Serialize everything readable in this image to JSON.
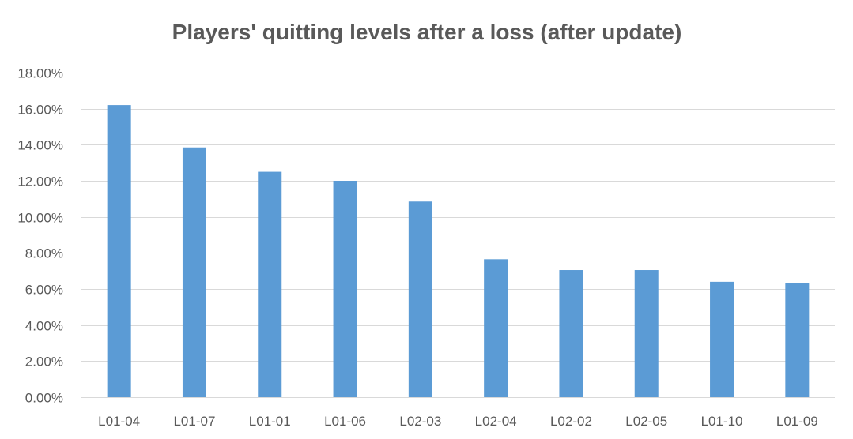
{
  "chart_data": {
    "type": "bar",
    "title": "Players' quitting levels after a loss (after update)",
    "xlabel": "",
    "ylabel": "",
    "categories": [
      "L01-04",
      "L01-07",
      "L01-01",
      "L01-06",
      "L02-03",
      "L02-04",
      "L02-02",
      "L02-05",
      "L01-10",
      "L01-09"
    ],
    "values": [
      16.2,
      13.85,
      12.5,
      12.0,
      10.85,
      7.65,
      7.05,
      7.05,
      6.4,
      6.35
    ],
    "value_format": "percent_2dp",
    "ylim": [
      0,
      18
    ],
    "yticks": [
      0,
      2,
      4,
      6,
      8,
      10,
      12,
      14,
      16,
      18
    ],
    "ytick_labels": [
      "0.00%",
      "2.00%",
      "4.00%",
      "6.00%",
      "8.00%",
      "10.00%",
      "12.00%",
      "14.00%",
      "16.00%",
      "18.00%"
    ],
    "grid": true,
    "legend": "none",
    "bar_color": "#5b9bd5"
  }
}
